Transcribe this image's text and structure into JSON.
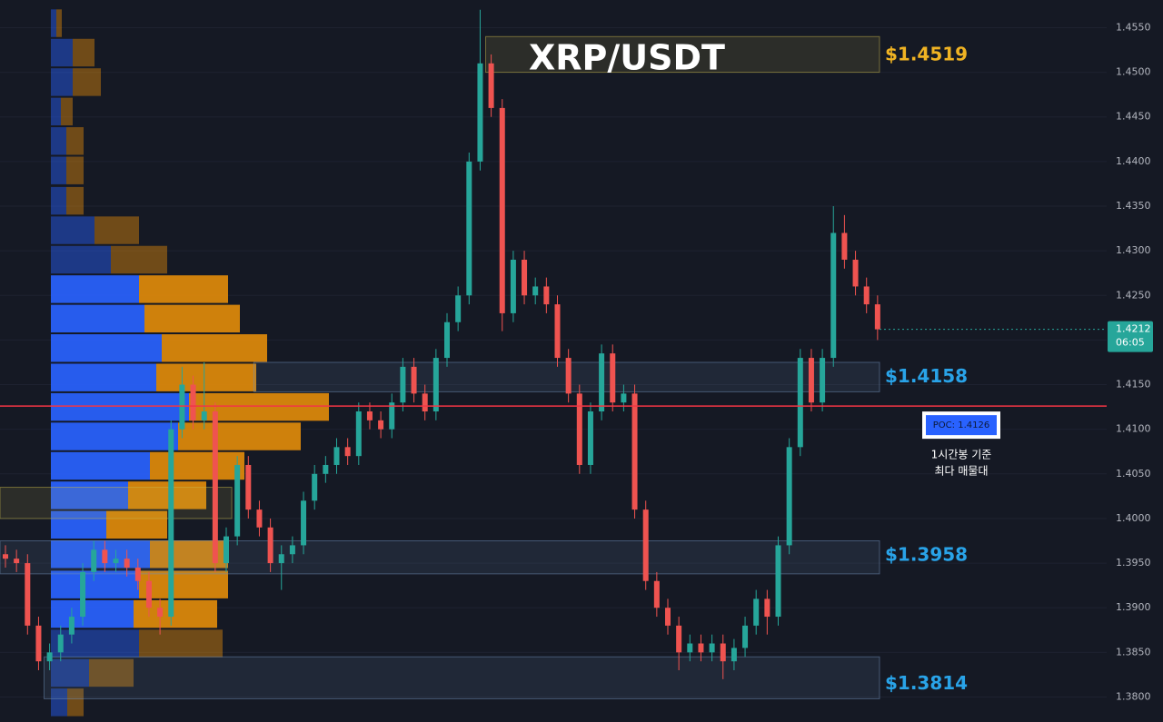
{
  "chart_data": {
    "type": "candlestick",
    "title": "XRP/USDT",
    "ylim": [
      1.3772,
      1.4581
    ],
    "yticks": [
      {
        "value": 1.455,
        "label": "1.4550"
      },
      {
        "value": 1.45,
        "label": "1.4500"
      },
      {
        "value": 1.445,
        "label": "1.4450"
      },
      {
        "value": 1.44,
        "label": "1.4400"
      },
      {
        "value": 1.435,
        "label": "1.4350"
      },
      {
        "value": 1.43,
        "label": "1.4300"
      },
      {
        "value": 1.425,
        "label": "1.4250"
      },
      {
        "value": 1.42,
        "label": "1.4200"
      },
      {
        "value": 1.415,
        "label": "1.4150"
      },
      {
        "value": 1.41,
        "label": "1.4100"
      },
      {
        "value": 1.405,
        "label": "1.4050"
      },
      {
        "value": 1.4,
        "label": "1.4000"
      },
      {
        "value": 1.395,
        "label": "1.3950"
      },
      {
        "value": 1.39,
        "label": "1.3900"
      },
      {
        "value": 1.385,
        "label": "1.3850"
      },
      {
        "value": 1.38,
        "label": "1.3800"
      }
    ],
    "grid": true,
    "up_color": "#26a69a",
    "down_color": "#ef5350",
    "open": [
      1.396,
      1.3955,
      1.395,
      1.388,
      1.384,
      1.385,
      1.387,
      1.389,
      1.394,
      1.3965,
      1.395,
      1.3955,
      1.3945,
      1.393,
      1.39,
      1.389,
      1.41,
      1.415,
      1.411,
      1.412,
      1.395,
      1.398,
      1.406,
      1.401,
      1.399,
      1.395,
      1.396,
      1.397,
      1.402,
      1.405,
      1.406,
      1.408,
      1.407,
      1.412,
      1.411,
      1.41,
      1.413,
      1.417,
      1.414,
      1.412,
      1.418,
      1.422,
      1.425,
      1.44,
      1.451,
      1.446,
      1.423,
      1.429,
      1.425,
      1.426,
      1.424,
      1.418,
      1.414,
      1.406,
      1.412,
      1.4185,
      1.413,
      1.414,
      1.401,
      1.393,
      1.39,
      1.388,
      1.385,
      1.386,
      1.385,
      1.386,
      1.384,
      1.3855,
      1.388,
      1.391,
      1.389,
      1.397,
      1.408,
      1.418,
      1.413,
      1.418,
      1.432,
      1.429,
      1.426,
      1.424
    ],
    "high": [
      1.397,
      1.3965,
      1.396,
      1.389,
      1.386,
      1.388,
      1.39,
      1.395,
      1.3975,
      1.3975,
      1.3965,
      1.3965,
      1.3955,
      1.394,
      1.391,
      1.411,
      1.417,
      1.416,
      1.4175,
      1.413,
      1.399,
      1.407,
      1.407,
      1.402,
      1.4,
      1.397,
      1.398,
      1.403,
      1.406,
      1.407,
      1.409,
      1.409,
      1.413,
      1.413,
      1.412,
      1.414,
      1.418,
      1.418,
      1.415,
      1.419,
      1.423,
      1.426,
      1.441,
      1.457,
      1.452,
      1.447,
      1.43,
      1.43,
      1.427,
      1.427,
      1.425,
      1.419,
      1.415,
      1.413,
      1.4195,
      1.4195,
      1.415,
      1.415,
      1.402,
      1.394,
      1.391,
      1.389,
      1.387,
      1.387,
      1.387,
      1.387,
      1.3865,
      1.389,
      1.392,
      1.392,
      1.398,
      1.409,
      1.419,
      1.419,
      1.419,
      1.435,
      1.434,
      1.43,
      1.427,
      1.425
    ],
    "low": [
      1.3945,
      1.394,
      1.387,
      1.383,
      1.383,
      1.384,
      1.386,
      1.388,
      1.393,
      1.394,
      1.394,
      1.3935,
      1.392,
      1.389,
      1.387,
      1.388,
      1.409,
      1.41,
      1.41,
      1.394,
      1.394,
      1.397,
      1.4,
      1.398,
      1.394,
      1.392,
      1.395,
      1.396,
      1.401,
      1.404,
      1.405,
      1.406,
      1.406,
      1.41,
      1.409,
      1.409,
      1.412,
      1.413,
      1.411,
      1.411,
      1.417,
      1.421,
      1.424,
      1.439,
      1.445,
      1.421,
      1.422,
      1.424,
      1.424,
      1.423,
      1.417,
      1.413,
      1.405,
      1.405,
      1.411,
      1.412,
      1.412,
      1.4,
      1.392,
      1.389,
      1.387,
      1.383,
      1.384,
      1.384,
      1.384,
      1.382,
      1.383,
      1.3845,
      1.387,
      1.387,
      1.388,
      1.396,
      1.407,
      1.412,
      1.412,
      1.417,
      1.428,
      1.425,
      1.423,
      1.42
    ],
    "close": [
      1.3955,
      1.395,
      1.388,
      1.384,
      1.385,
      1.387,
      1.389,
      1.394,
      1.3965,
      1.395,
      1.3955,
      1.3945,
      1.393,
      1.39,
      1.389,
      1.41,
      1.415,
      1.411,
      1.412,
      1.395,
      1.398,
      1.406,
      1.401,
      1.399,
      1.395,
      1.396,
      1.397,
      1.402,
      1.405,
      1.406,
      1.408,
      1.407,
      1.412,
      1.411,
      1.41,
      1.413,
      1.417,
      1.414,
      1.412,
      1.418,
      1.422,
      1.425,
      1.44,
      1.451,
      1.446,
      1.423,
      1.429,
      1.425,
      1.426,
      1.424,
      1.418,
      1.414,
      1.406,
      1.412,
      1.4185,
      1.413,
      1.414,
      1.401,
      1.393,
      1.39,
      1.388,
      1.385,
      1.386,
      1.385,
      1.386,
      1.384,
      1.3855,
      1.388,
      1.391,
      1.389,
      1.397,
      1.408,
      1.418,
      1.413,
      1.418,
      1.432,
      1.429,
      1.426,
      1.424,
      1.4212
    ],
    "last_price": 1.4212,
    "countdown": "06:05",
    "volume_profile": {
      "levels": [
        1.4555,
        1.4522,
        1.4489,
        1.4456,
        1.4423,
        1.439,
        1.4356,
        1.4323,
        1.429,
        1.4257,
        1.4224,
        1.4191,
        1.4158,
        1.4125,
        1.4092,
        1.4059,
        1.4026,
        1.3993,
        1.396,
        1.3926,
        1.3893,
        1.386,
        1.3827,
        1.3794
      ],
      "buy": [
        6,
        24,
        24,
        11,
        17,
        17,
        17,
        48,
        66,
        97,
        103,
        122,
        116,
        152,
        140,
        109,
        85,
        61,
        109,
        97,
        91,
        97,
        42,
        18
      ],
      "sell": [
        6,
        24,
        31,
        13,
        19,
        19,
        19,
        49,
        62,
        98,
        105,
        116,
        110,
        154,
        135,
        104,
        86,
        67,
        86,
        98,
        92,
        92,
        49,
        18
      ],
      "buy_color": "#2962ff",
      "sell_color": "#e08a0b",
      "value_area": [
        1.3893,
        1.4257
      ]
    },
    "poc": {
      "value": 1.4126,
      "label": "POC: 1.4126",
      "color": "#f23645"
    },
    "annotation": [
      "1시간봉 기준",
      "최다 매물대"
    ],
    "zones": [
      {
        "top": 1.454,
        "bottom": 1.45,
        "start": 44,
        "end": 80,
        "color": "#c8b84a",
        "level": 1.4519,
        "level_label": "$1.4519",
        "label_color": "#f0b323"
      },
      {
        "top": 1.4175,
        "bottom": 1.4142,
        "start": 23,
        "end": 80,
        "color": "#6f8fb8",
        "level": 1.4158,
        "level_label": "$1.4158",
        "label_color": "#29a3e8"
      },
      {
        "top": 1.3975,
        "bottom": 1.3938,
        "start": 0,
        "end": 80,
        "color": "#6f8fb8",
        "level": 1.3958,
        "level_label": "$1.3958",
        "label_color": "#29a3e8"
      },
      {
        "top": 1.3845,
        "bottom": 1.3798,
        "start": 4,
        "end": 80,
        "color": "#6f8fb8",
        "level": 1.3814,
        "level_label": "$1.3814",
        "label_color": "#29a3e8"
      },
      {
        "top": 1.4035,
        "bottom": 1.4,
        "start": 0,
        "end": 21,
        "color": "#c8b84a"
      }
    ]
  }
}
